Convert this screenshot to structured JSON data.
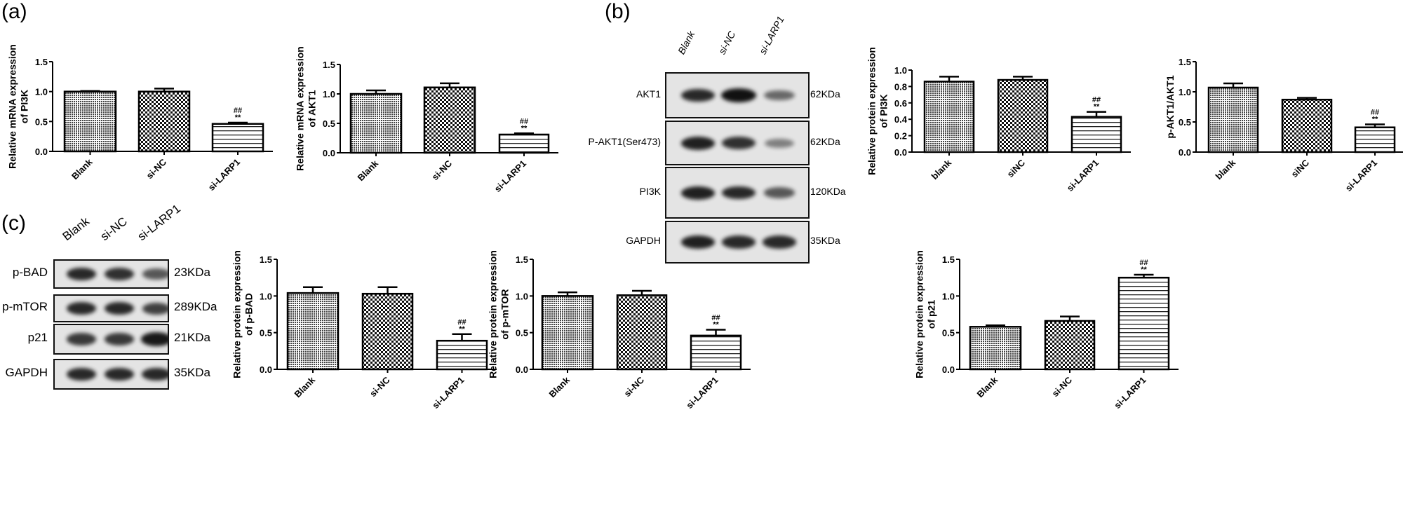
{
  "panels": {
    "a": "(a)",
    "b": "(b)",
    "c": "(c)"
  },
  "blots": {
    "b": {
      "lanes": [
        "Blank",
        "si-NC",
        "si-LARP1"
      ],
      "rows": [
        {
          "name": "AKT1",
          "kda": "62KDa",
          "band_intensity": [
            0.85,
            1.0,
            0.45
          ]
        },
        {
          "name": "P-AKT1(Ser473)",
          "kda": "62KDa",
          "band_intensity": [
            0.9,
            0.8,
            0.3
          ]
        },
        {
          "name": "PI3K",
          "kda": "120KDa",
          "band_intensity": [
            0.9,
            0.85,
            0.55
          ]
        },
        {
          "name": "GAPDH",
          "kda": "35KDa",
          "band_intensity": [
            0.9,
            0.85,
            0.85
          ]
        }
      ]
    },
    "c": {
      "lanes": [
        "Blank",
        "si-NC",
        "si-LARP1"
      ],
      "rows": [
        {
          "name": "p-BAD",
          "kda": "23KDa",
          "band_intensity": [
            0.85,
            0.8,
            0.55
          ]
        },
        {
          "name": "p-mTOR",
          "kda": "289KDa",
          "band_intensity": [
            0.85,
            0.85,
            0.7
          ]
        },
        {
          "name": "p21",
          "kda": "21KDa",
          "band_intensity": [
            0.75,
            0.75,
            0.95
          ]
        },
        {
          "name": "GAPDH",
          "kda": "35KDa",
          "band_intensity": [
            0.85,
            0.85,
            0.85
          ]
        }
      ]
    }
  },
  "chart_data": [
    {
      "type": "bar",
      "panel": "a",
      "categories": [
        "Blank",
        "si-NC",
        "si-LARP1"
      ],
      "values": [
        1.0,
        1.0,
        0.46
      ],
      "errors": [
        0.01,
        0.05,
        0.02
      ],
      "ylabel": [
        "Relative mRNA expression",
        "of PI3K"
      ],
      "ylim": [
        0,
        1.5
      ],
      "yticks": [
        "0.0",
        "0.5",
        "1.0",
        "1.5"
      ],
      "annotations": [
        {
          "category": "si-LARP1",
          "text": [
            "##",
            "**"
          ]
        }
      ],
      "grid": false
    },
    {
      "type": "bar",
      "panel": "a",
      "categories": [
        "Blank",
        "si-NC",
        "si-LARP1"
      ],
      "values": [
        1.0,
        1.11,
        0.31
      ],
      "errors": [
        0.06,
        0.07,
        0.02
      ],
      "ylabel": [
        "Relative mRNA expression",
        "of AKT1"
      ],
      "ylim": [
        0,
        1.5
      ],
      "yticks": [
        "0.0",
        "0.5",
        "1.0",
        "1.5"
      ],
      "annotations": [
        {
          "category": "si-LARP1",
          "text": [
            "##",
            "**"
          ]
        }
      ],
      "grid": false
    },
    {
      "type": "bar",
      "panel": "b",
      "categories": [
        "blank",
        "siNC",
        "si-LARP1"
      ],
      "values": [
        0.86,
        0.88,
        0.43
      ],
      "errors": [
        0.06,
        0.04,
        0.06
      ],
      "ylabel": [
        "Relative protein expression",
        "of PI3K"
      ],
      "ylim": [
        0,
        1.0
      ],
      "yticks": [
        "0.0",
        "0.2",
        "0.4",
        "0.6",
        "0.8",
        "1.0"
      ],
      "annotations": [
        {
          "category": "si-LARP1",
          "text": [
            "##",
            "**"
          ]
        }
      ],
      "grid": false
    },
    {
      "type": "bar",
      "panel": "b",
      "categories": [
        "blank",
        "siNC",
        "si-LARP1"
      ],
      "values": [
        1.07,
        0.87,
        0.41
      ],
      "errors": [
        0.07,
        0.03,
        0.05
      ],
      "ylabel": [
        "p-AKT1/AKT1"
      ],
      "ylim": [
        0,
        1.5
      ],
      "yticks": [
        "0.0",
        "0.5",
        "1.0",
        "1.5"
      ],
      "annotations": [
        {
          "category": "si-LARP1",
          "text": [
            "##",
            "**"
          ]
        }
      ],
      "grid": false
    },
    {
      "type": "bar",
      "panel": "c",
      "categories": [
        "Blank",
        "si-NC",
        "si-LARP1"
      ],
      "values": [
        1.04,
        1.03,
        0.39
      ],
      "errors": [
        0.08,
        0.09,
        0.09
      ],
      "ylabel": [
        "Relative protein expression",
        "of p-BAD"
      ],
      "ylim": [
        0,
        1.5
      ],
      "yticks": [
        "0.0",
        "0.5",
        "1.0",
        "1.5"
      ],
      "annotations": [
        {
          "category": "si-LARP1",
          "text": [
            "##",
            "**"
          ]
        }
      ],
      "grid": false
    },
    {
      "type": "bar",
      "panel": "c",
      "categories": [
        "Blank",
        "si-NC",
        "si-LARP1"
      ],
      "values": [
        1.0,
        1.01,
        0.46
      ],
      "errors": [
        0.05,
        0.06,
        0.08
      ],
      "ylabel": [
        "Relative protein expression",
        "of p-mTOR"
      ],
      "ylim": [
        0,
        1.5
      ],
      "yticks": [
        "0.0",
        "0.5",
        "1.0",
        "1.5"
      ],
      "annotations": [
        {
          "category": "si-LARP1",
          "text": [
            "##",
            "**"
          ]
        }
      ],
      "grid": false
    },
    {
      "type": "bar",
      "panel": "c",
      "categories": [
        "Blank",
        "si-NC",
        "si-LARP1"
      ],
      "values": [
        0.58,
        0.66,
        1.25
      ],
      "errors": [
        0.02,
        0.06,
        0.04
      ],
      "ylabel": [
        "Relative protein expression",
        "of p21"
      ],
      "ylim": [
        0,
        1.5
      ],
      "yticks": [
        "0.0",
        "0.5",
        "1.0",
        "1.5"
      ],
      "annotations": [
        {
          "category": "si-LARP1",
          "text": [
            "##",
            "**"
          ]
        }
      ],
      "grid": false
    }
  ]
}
